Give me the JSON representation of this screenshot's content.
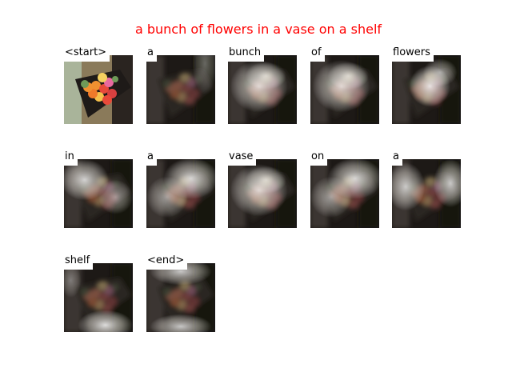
{
  "title": "a bunch of flowers in a vase on a shelf",
  "title_color": "#ff0000",
  "tokens": [
    {
      "word": "<start>",
      "kind": "original",
      "focus": "none"
    },
    {
      "word": "a",
      "kind": "attention",
      "focus": "vase-edge"
    },
    {
      "word": "bunch",
      "kind": "attention",
      "focus": "vase-wide"
    },
    {
      "word": "of",
      "kind": "attention",
      "focus": "vase-wide"
    },
    {
      "word": "flowers",
      "kind": "attention",
      "focus": "flowers"
    },
    {
      "word": "in",
      "kind": "attention",
      "focus": "upper-left"
    },
    {
      "word": "a",
      "kind": "attention",
      "focus": "upper-right"
    },
    {
      "word": "vase",
      "kind": "attention",
      "focus": "vase-wide"
    },
    {
      "word": "on",
      "kind": "attention",
      "focus": "upper-right"
    },
    {
      "word": "a",
      "kind": "attention",
      "focus": "left-and-right"
    },
    {
      "word": "shelf",
      "kind": "attention",
      "focus": "bottom"
    },
    {
      "word": "<end>",
      "kind": "attention",
      "focus": "top-and-bottom"
    }
  ]
}
